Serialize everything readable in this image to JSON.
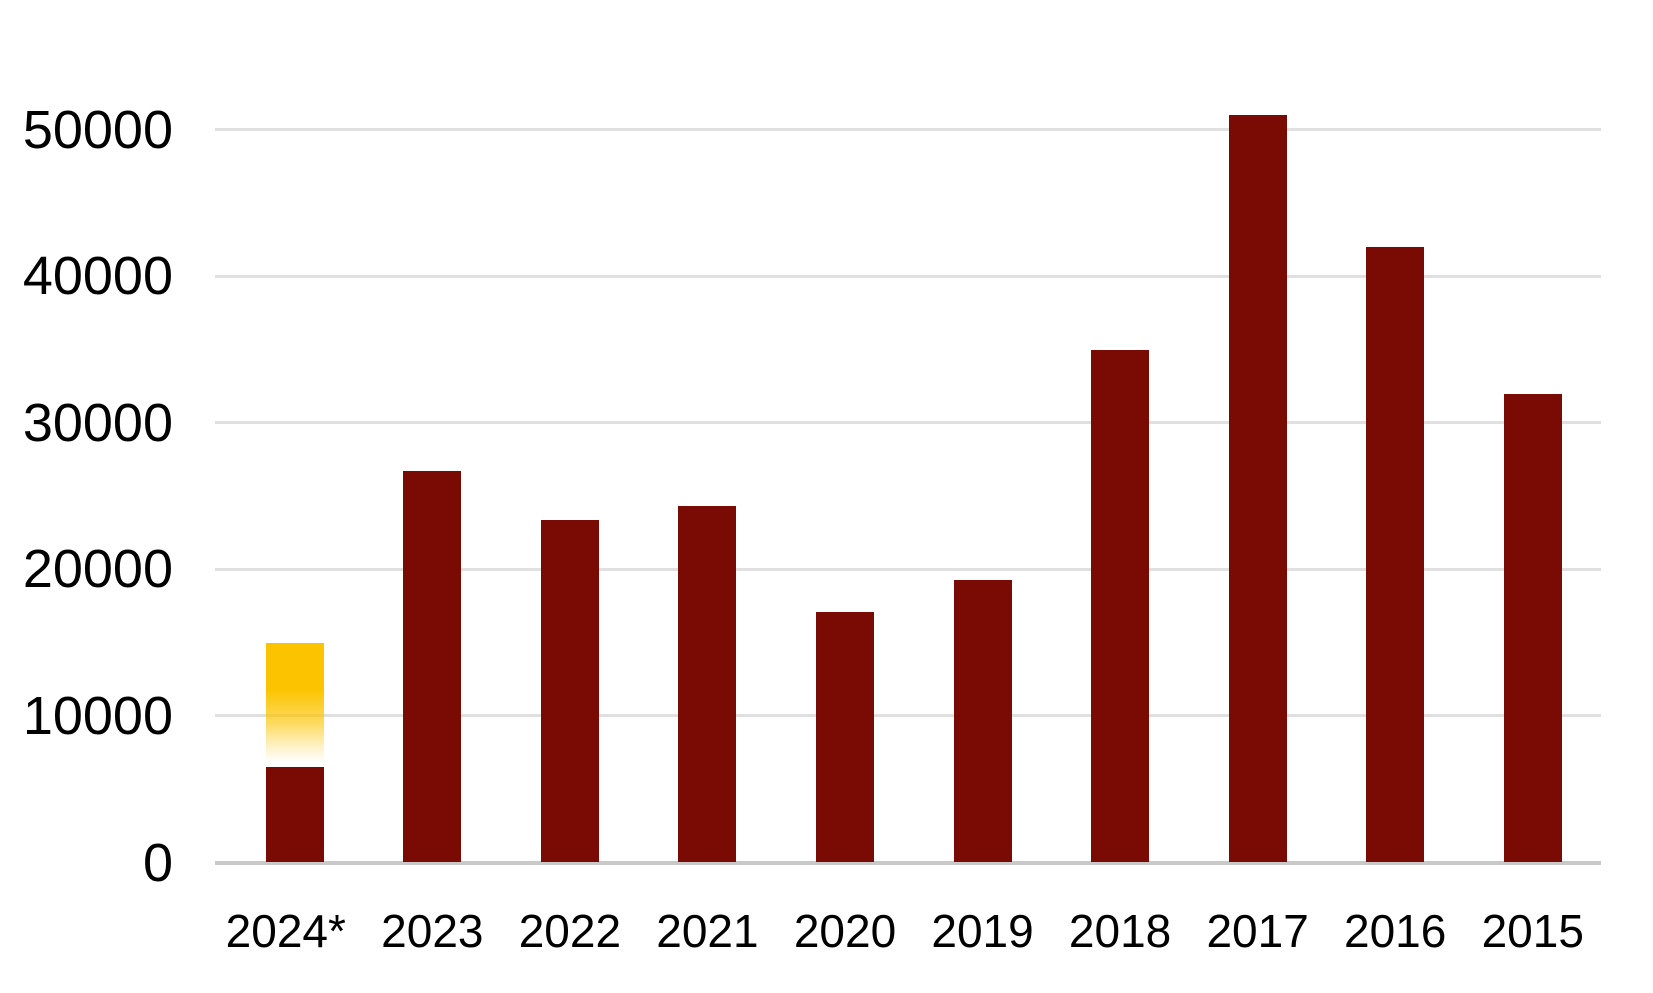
{
  "chart_data": {
    "type": "bar",
    "title": "",
    "xlabel": "",
    "ylabel": "",
    "categories": [
      "2024*",
      "2023",
      "2022",
      "2021",
      "2020",
      "2019",
      "2018",
      "2017",
      "2016",
      "2015"
    ],
    "values": [
      15000,
      26700,
      23400,
      24300,
      17100,
      19300,
      35000,
      51000,
      42000,
      32000
    ],
    "special_bar": {
      "category": "2024*",
      "index": 0,
      "actual_value": 6500,
      "forecast_total": 15000,
      "note": "2024* bar: solid dark-red lower segment (actual) topped by a gold gradient forecast segment fading to white toward its bottom"
    },
    "y_ticks": [
      0,
      10000,
      20000,
      30000,
      40000,
      50000
    ],
    "y_tick_labels": [
      "0",
      "10000",
      "20000",
      "30000",
      "40000",
      "50000"
    ],
    "ylim": [
      0,
      53000
    ],
    "grid": "horizontal gridlines on, vertical off",
    "legend": "none",
    "colors": {
      "bar": "#7a0a04",
      "forecast_gold": "#fcc400",
      "gridline": "#e0e0e0",
      "axis_line": "#c9c9c9",
      "label_text": "#000000",
      "background": "#ffffff"
    }
  }
}
